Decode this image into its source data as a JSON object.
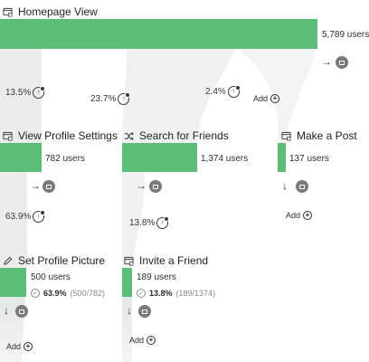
{
  "nodes": {
    "homepage": {
      "title": "Homepage View",
      "users": "5,789 users"
    },
    "view_profile": {
      "title": "View Profile Settings",
      "users": "782 users"
    },
    "search_friends": {
      "title": "Search for Friends",
      "users": "1,374 users"
    },
    "make_post": {
      "title": "Make a Post",
      "users": "137 users"
    },
    "set_picture": {
      "title": "Set Profile Picture",
      "users": "500 users",
      "conv_pct": "63.9%",
      "conv_ratio": "(500/782)"
    },
    "invite_friend": {
      "title": "Invite a Friend",
      "users": "189 users",
      "conv_pct": "13.8%",
      "conv_ratio": "(189/1374)"
    }
  },
  "rates": {
    "home_to_profile": "13.5%",
    "home_to_search": "23.7%",
    "home_to_post": "2.4%",
    "profile_to_picture": "63.9%",
    "search_to_invite": "13.8%"
  },
  "add_label": "Add",
  "arrows": {
    "right": "→",
    "down": "↓"
  },
  "icons": {
    "page": "browser-window-icon",
    "shuffle": "shuffle-icon",
    "pencil": "pencil-icon",
    "record": "video-record-icon",
    "rate": "conversion-rate-icon",
    "plus": "plus-circle-icon",
    "check": "check-circle-icon"
  },
  "colors": {
    "bar": "#5bbd78",
    "flow": "#e8ede9"
  }
}
